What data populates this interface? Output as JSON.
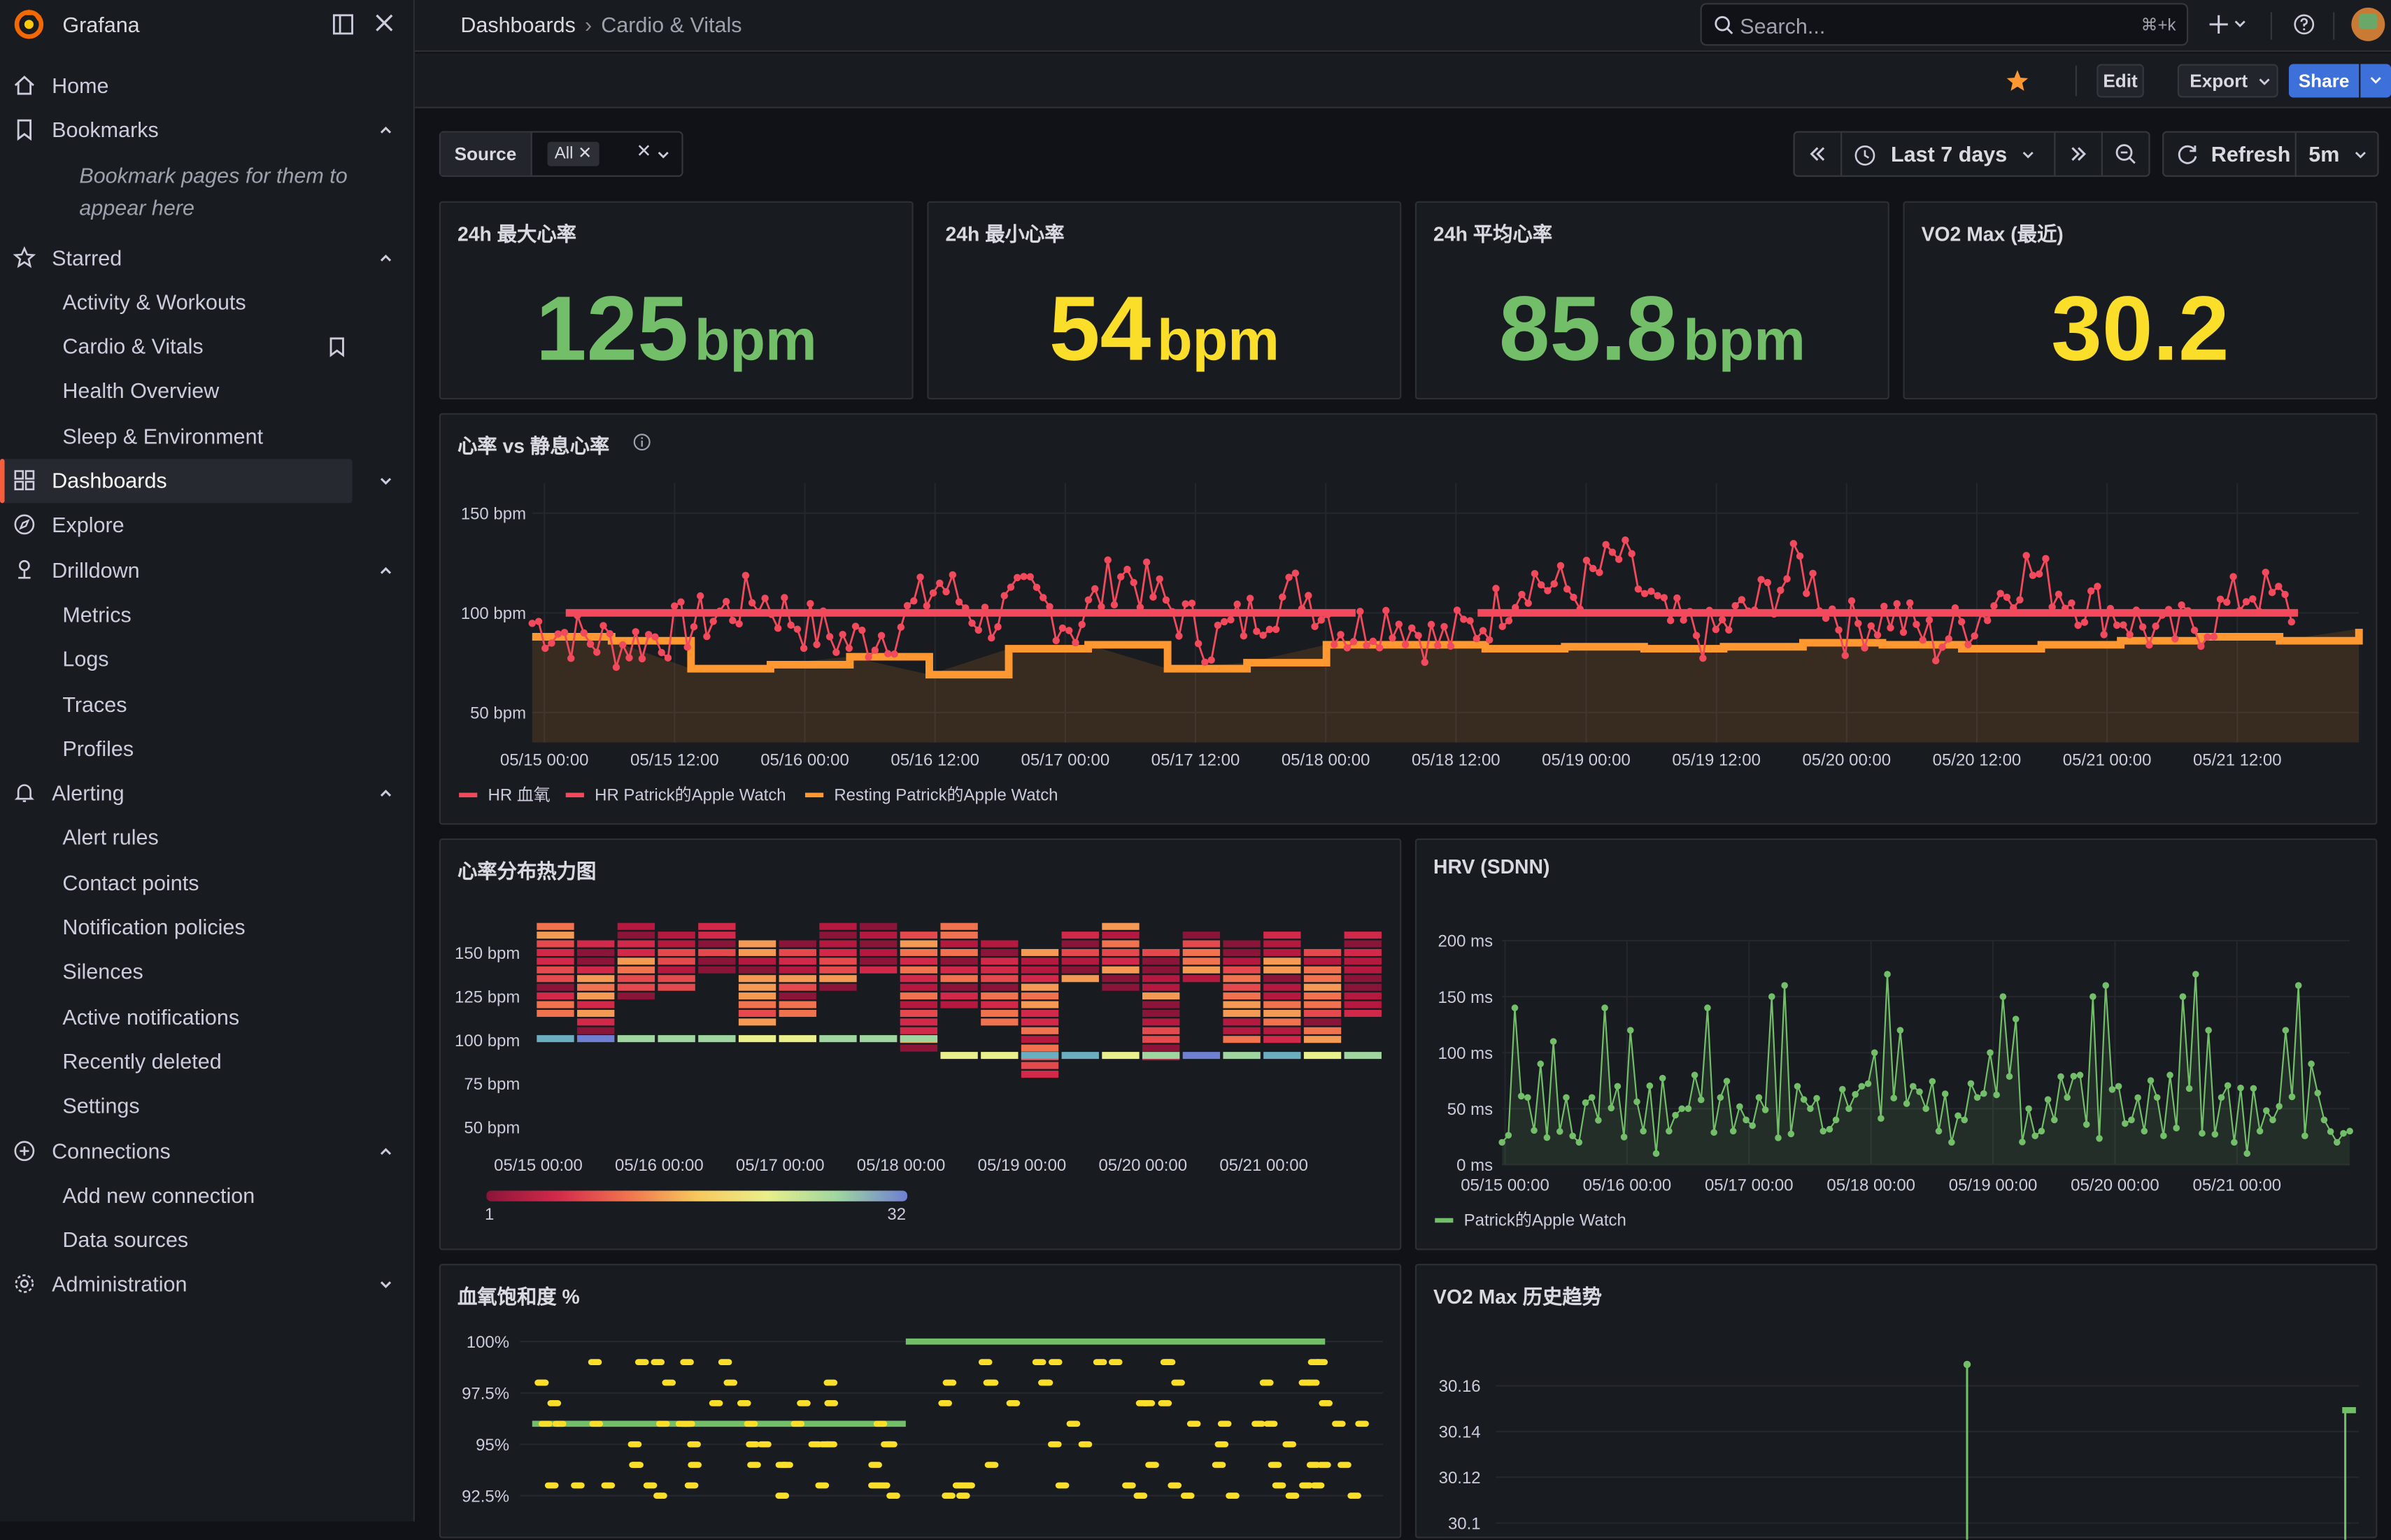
{
  "app": {
    "name": "Grafana"
  },
  "sidebar": {
    "home": "Home",
    "bookmarks": {
      "label": "Bookmarks",
      "empty": "Bookmark pages for them to appear here"
    },
    "starred": {
      "label": "Starred",
      "items": [
        "Activity & Workouts",
        "Cardio & Vitals",
        "Health Overview",
        "Sleep & Environment"
      ]
    },
    "dashboards": "Dashboards",
    "explore": "Explore",
    "drilldown": {
      "label": "Drilldown",
      "items": [
        "Metrics",
        "Logs",
        "Traces",
        "Profiles"
      ]
    },
    "alerting": {
      "label": "Alerting",
      "items": [
        "Alert rules",
        "Contact points",
        "Notification policies",
        "Silences",
        "Active notifications",
        "Recently deleted",
        "Settings"
      ]
    },
    "connections": {
      "label": "Connections",
      "items": [
        "Add new connection",
        "Data sources"
      ]
    },
    "administration": "Administration"
  },
  "topbar": {
    "breadcrumb": [
      "Dashboards",
      "Cardio & Vitals"
    ],
    "search_placeholder": "Search...",
    "search_shortcut": "⌘+k"
  },
  "toolbar": {
    "edit": "Edit",
    "export": "Export",
    "share": "Share"
  },
  "variables": {
    "source_label": "Source",
    "source_value": "All"
  },
  "time": {
    "range": "Last 7 days",
    "refresh": "Refresh",
    "interval": "5m"
  },
  "colors": {
    "green": "#73bf69",
    "yellow": "#fade2a",
    "red": "#f2495c",
    "orange": "#ff9830",
    "accent": "#f55f3e",
    "primary": "#3d71d9"
  },
  "stats": [
    {
      "title": "24h 最大心率",
      "value": "125",
      "unit": "bpm",
      "color": "#73bf69"
    },
    {
      "title": "24h 最小心率",
      "value": "54",
      "unit": "bpm",
      "color": "#fade2a"
    },
    {
      "title": "24h 平均心率",
      "value": "85.8",
      "unit": "bpm",
      "color": "#73bf69"
    },
    {
      "title": "VO2 Max (最近)",
      "value": "30.2",
      "unit": "",
      "color": "#fade2a"
    }
  ],
  "panels": {
    "hr": {
      "title": "心率 vs 静息心率"
    },
    "heatmap": {
      "title": "心率分布热力图",
      "scale_min": "1",
      "scale_max": "32"
    },
    "hrv": {
      "title": "HRV (SDNN)"
    },
    "spo2": {
      "title": "血氧饱和度 %"
    },
    "vo2": {
      "title": "VO2 Max 历史趋势"
    }
  },
  "chart_data": [
    {
      "type": "line",
      "title": "心率 vs 静息心率",
      "ylabels": [
        "150 bpm",
        "100 bpm",
        "50 bpm"
      ],
      "ylim": [
        35,
        165
      ],
      "xticks": [
        "05/15 00:00",
        "05/15 12:00",
        "05/16 00:00",
        "05/16 12:00",
        "05/17 00:00",
        "05/17 12:00",
        "05/18 00:00",
        "05/18 12:00",
        "05/19 00:00",
        "05/19 12:00",
        "05/20 00:00",
        "05/20 12:00",
        "05/21 00:00",
        "05/21 12:00"
      ],
      "legend": [
        "HR 血氧",
        "HR Patrick的Apple Watch",
        "Resting Patrick的Apple Watch"
      ],
      "series": [
        {
          "name": "HR 血氧",
          "color": "#f2495c",
          "values": [
            100,
            100,
            100,
            100,
            100,
            100,
            100,
            100,
            100,
            100,
            100,
            100,
            100,
            99,
            99,
            99,
            99,
            99,
            99,
            99,
            99,
            99,
            99,
            99
          ]
        },
        {
          "name": "HR Patrick的Apple Watch",
          "color": "#f2495c",
          "values": [
            95,
            88,
            84,
            90,
            98,
            108,
            94,
            85,
            92,
            115,
            96,
            108,
            93,
            122,
            104,
            86,
            100,
            112,
            90,
            99,
            85,
            95,
            118,
            110,
            128,
            96,
            88,
            103,
            124,
            92,
            100,
            85,
            100,
            122,
            108,
            100,
            88,
            96,
            112,
            100
          ]
        },
        {
          "name": "Resting Patrick的Apple Watch",
          "color": "#ff9830",
          "values": [
            88,
            86,
            72,
            74,
            78,
            69,
            82,
            84,
            72,
            75,
            84,
            84,
            82,
            83,
            82,
            83,
            85,
            84,
            82,
            84,
            86,
            88,
            86,
            92
          ]
        }
      ]
    },
    {
      "type": "heatmap",
      "title": "心率分布热力图",
      "ylabels": [
        "150 bpm",
        "125 bpm",
        "100 bpm",
        "75 bpm",
        "50 bpm"
      ],
      "xticks": [
        "05/15 00:00",
        "05/16 00:00",
        "05/17 00:00",
        "05/18 00:00",
        "05/19 00:00",
        "05/20 00:00",
        "05/21 00:00"
      ]
    },
    {
      "type": "scatter",
      "title": "HRV (SDNN)",
      "ylabels": [
        "200 ms",
        "150 ms",
        "100 ms",
        "50 ms",
        "0 ms"
      ],
      "ylim": [
        0,
        200
      ],
      "xticks": [
        "05/15 00:00",
        "05/16 00:00",
        "05/17 00:00",
        "05/18 00:00",
        "05/19 00:00",
        "05/20 00:00",
        "05/21 00:00"
      ],
      "legend": [
        "Patrick的Apple Watch"
      ],
      "series": [
        {
          "name": "Patrick的Apple Watch",
          "values": [
            20,
            140,
            60,
            90,
            110,
            60,
            20,
            60,
            140,
            70,
            120,
            30,
            10,
            30,
            50,
            80,
            140,
            60,
            30,
            40,
            60,
            150,
            160,
            70,
            50,
            30,
            40,
            50,
            70,
            100,
            170,
            120,
            70,
            50,
            30,
            20,
            40,
            60,
            100,
            150,
            130,
            50,
            30,
            40,
            60,
            80,
            150,
            160,
            70,
            40,
            30,
            60,
            80,
            150,
            170,
            120,
            60,
            20,
            10,
            30,
            40,
            120,
            160,
            90,
            40,
            20,
            30
          ]
        }
      ]
    },
    {
      "type": "scatter",
      "title": "血氧饱和度 %",
      "ylabels": [
        "100%",
        "97.5%",
        "95%",
        "92.5%"
      ],
      "ylim": [
        91.5,
        100.5
      ]
    },
    {
      "type": "line",
      "title": "VO2 Max 历史趋势",
      "ylabels": [
        "30.16",
        "30.14",
        "30.12",
        "30.1"
      ],
      "ylim": [
        30.09,
        30.18
      ]
    }
  ]
}
